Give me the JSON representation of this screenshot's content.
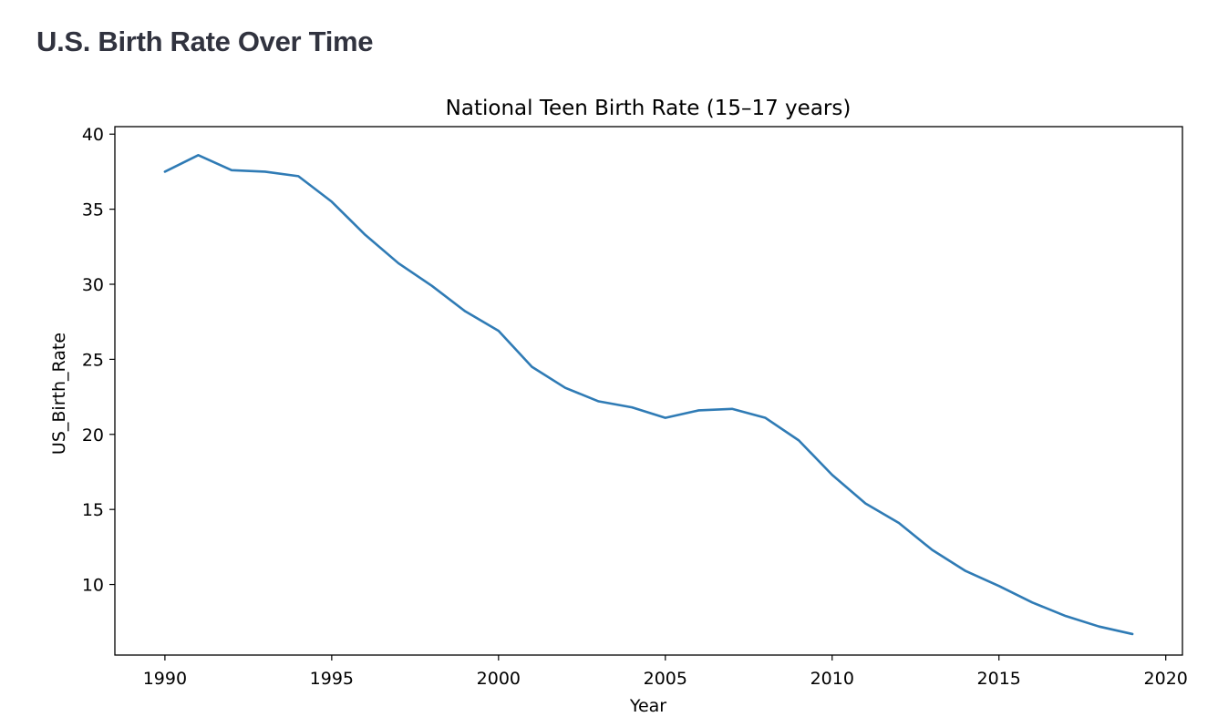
{
  "page": {
    "title": "U.S. Birth Rate Over Time"
  },
  "chart_data": {
    "type": "line",
    "title": "National Teen Birth Rate (15–17 years)",
    "xlabel": "Year",
    "ylabel": "US_Birth_Rate",
    "xlim": [
      1988.5,
      2020.5
    ],
    "ylim": [
      5.3,
      40.5
    ],
    "xticks": [
      1990,
      1995,
      2000,
      2005,
      2010,
      2015,
      2020
    ],
    "yticks": [
      10,
      15,
      20,
      25,
      30,
      35,
      40
    ],
    "grid": false,
    "line_color": "#2f7bb5",
    "x": [
      1990,
      1991,
      1992,
      1993,
      1994,
      1995,
      1996,
      1997,
      1998,
      1999,
      2000,
      2001,
      2002,
      2003,
      2004,
      2005,
      2006,
      2007,
      2008,
      2009,
      2010,
      2011,
      2012,
      2013,
      2014,
      2015,
      2016,
      2017,
      2018,
      2019
    ],
    "series": [
      {
        "values": [
          37.5,
          38.6,
          37.6,
          37.5,
          37.2,
          35.5,
          33.3,
          31.4,
          29.9,
          28.2,
          26.9,
          24.5,
          23.1,
          22.2,
          21.8,
          21.1,
          21.6,
          21.7,
          21.1,
          19.6,
          17.3,
          15.4,
          14.1,
          12.3,
          10.9,
          9.9,
          8.8,
          7.9,
          7.2,
          6.7
        ]
      }
    ]
  }
}
